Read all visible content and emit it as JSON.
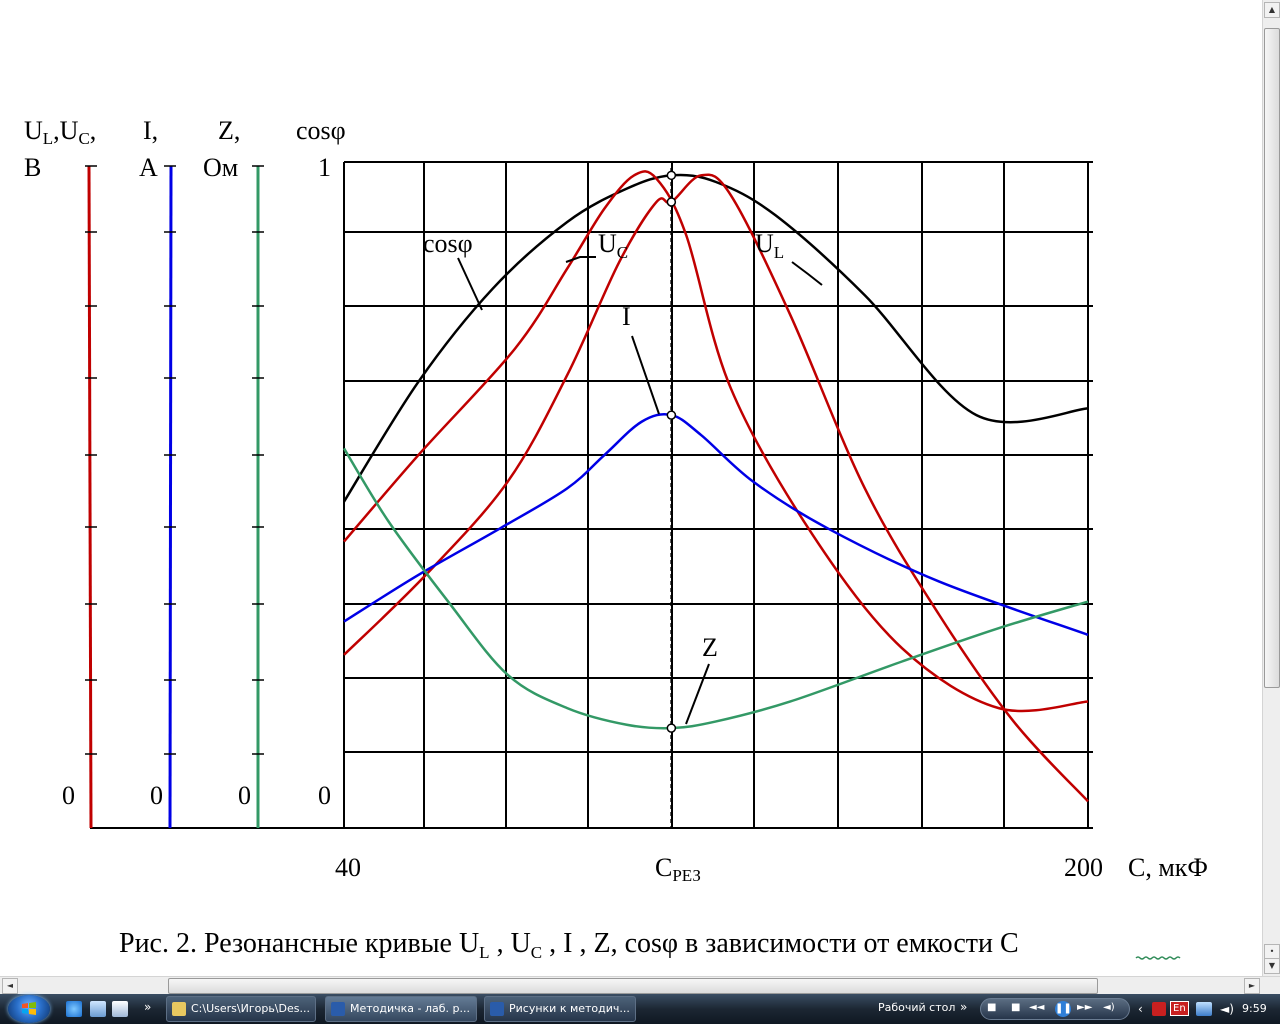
{
  "axes_header": {
    "ul_uc": [
      "U",
      "L",
      ",U",
      "C",
      ","
    ],
    "ul_uc_unit": "В",
    "i": "I,",
    "i_unit": "А",
    "z": "Z,",
    "z_unit": "Ом",
    "cos": "cosφ",
    "cos_one": "1",
    "zeros": [
      "0",
      "0",
      "0",
      "0"
    ]
  },
  "x_axis": {
    "left_tick": "40",
    "resonance_main": "C",
    "resonance_sub": "РЕЗ",
    "right_tick": "200",
    "title": "C, мкФ"
  },
  "curve_labels": {
    "cos": "cosφ",
    "uc_main": "U",
    "uc_sub": "C",
    "ul_main": "U",
    "ul_sub": "L",
    "i": "I",
    "z": "Z"
  },
  "caption": {
    "prefix": "Рис. 2.  Резонансные кривые U",
    "s1": "L",
    "mid1": " , U",
    "s2": "C",
    "mid2": " , I , Z, cosφ  в зависимости от емкости C"
  },
  "colors": {
    "uc_ul": "#c00000",
    "i": "#0000e6",
    "z": "#339966",
    "cos": "#000000",
    "grid": "#000000"
  },
  "chart_data": {
    "type": "line",
    "x_range": [
      40,
      200
    ],
    "x_tick_labels": [
      "40",
      "C_РЕЗ",
      "200"
    ],
    "resonance_x_fraction": 0.44,
    "series": [
      {
        "name": "cosφ",
        "color": "#000000",
        "x": [
          0,
          0.1,
          0.2,
          0.3,
          0.38,
          0.44,
          0.5,
          0.58,
          0.7,
          0.85,
          1
        ],
        "y": [
          0.49,
          0.67,
          0.81,
          0.91,
          0.96,
          0.98,
          0.97,
          0.92,
          0.8,
          0.62,
          0.63
        ]
      },
      {
        "name": "U_C",
        "color": "#c00000",
        "x": [
          0,
          0.1,
          0.23,
          0.3,
          0.35,
          0.39,
          0.42,
          0.46,
          0.52,
          0.63,
          0.75,
          0.88,
          1
        ],
        "y": [
          0.43,
          0.56,
          0.72,
          0.84,
          0.93,
          0.98,
          0.975,
          0.89,
          0.66,
          0.44,
          0.27,
          0.18,
          0.19
        ]
      },
      {
        "name": "U_L",
        "color": "#c00000",
        "x": [
          0,
          0.11,
          0.22,
          0.3,
          0.37,
          0.42,
          0.44,
          0.48,
          0.52,
          0.6,
          0.7,
          0.8,
          0.9,
          1
        ],
        "y": [
          0.26,
          0.38,
          0.52,
          0.68,
          0.85,
          0.94,
          0.94,
          0.98,
          0.95,
          0.77,
          0.51,
          0.32,
          0.16,
          0.04
        ]
      },
      {
        "name": "I",
        "color": "#0000e6",
        "x": [
          0,
          0.1,
          0.21,
          0.3,
          0.35,
          0.4,
          0.44,
          0.48,
          0.55,
          0.65,
          0.8,
          1
        ],
        "y": [
          0.31,
          0.38,
          0.45,
          0.51,
          0.56,
          0.61,
          0.62,
          0.59,
          0.52,
          0.45,
          0.37,
          0.29
        ]
      },
      {
        "name": "Z",
        "color": "#339966",
        "x": [
          0,
          0.06,
          0.14,
          0.22,
          0.3,
          0.38,
          0.44,
          0.5,
          0.6,
          0.75,
          0.88,
          1
        ],
        "y": [
          0.57,
          0.46,
          0.34,
          0.23,
          0.18,
          0.155,
          0.15,
          0.16,
          0.19,
          0.25,
          0.3,
          0.34
        ]
      }
    ],
    "left_axes": [
      {
        "name": "U_L,U_C",
        "unit": "В",
        "color": "#c00000"
      },
      {
        "name": "I",
        "unit": "А",
        "color": "#0000e6"
      },
      {
        "name": "Z",
        "unit": "Ом",
        "color": "#339966"
      },
      {
        "name": "cosφ",
        "top_value": 1,
        "bottom_value": 0,
        "color": "#000000"
      }
    ],
    "grid": true,
    "xlabel": "C, мкФ",
    "title": ""
  },
  "taskbar": {
    "tasks": [
      "C:\\Users\\Игорь\\Des...",
      "Методичка - лаб. р...",
      "Рисунки к методич..."
    ],
    "desktop_label": "Рабочий стол",
    "chevron": "»",
    "lang": "En",
    "clock": "9:59"
  }
}
